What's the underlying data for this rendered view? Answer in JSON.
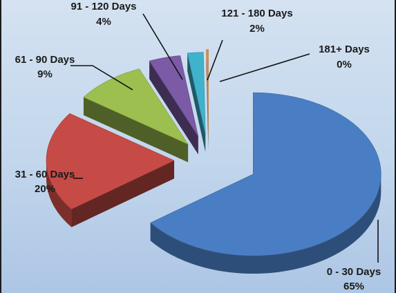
{
  "chart_data": {
    "type": "pie",
    "variant": "3d-exploded",
    "title": "",
    "slices": [
      {
        "label": "0 - 30 Days",
        "percent_label": "65%",
        "value": 65,
        "color": "#4a7ec4"
      },
      {
        "label": "31 - 60 Days",
        "percent_label": "20%",
        "value": 20,
        "color": "#c64b46"
      },
      {
        "label": "61 - 90 Days",
        "percent_label": "9%",
        "value": 9,
        "color": "#9cbf4f"
      },
      {
        "label": "91 - 120 Days",
        "percent_label": "4%",
        "value": 4,
        "color": "#7b5aa6"
      },
      {
        "label": "121 - 180 Days",
        "percent_label": "2%",
        "value": 2,
        "color": "#3fb2cc"
      },
      {
        "label": "181+ Days",
        "percent_label": "0%",
        "value": 0.25,
        "color": "#e08b3a"
      }
    ]
  }
}
